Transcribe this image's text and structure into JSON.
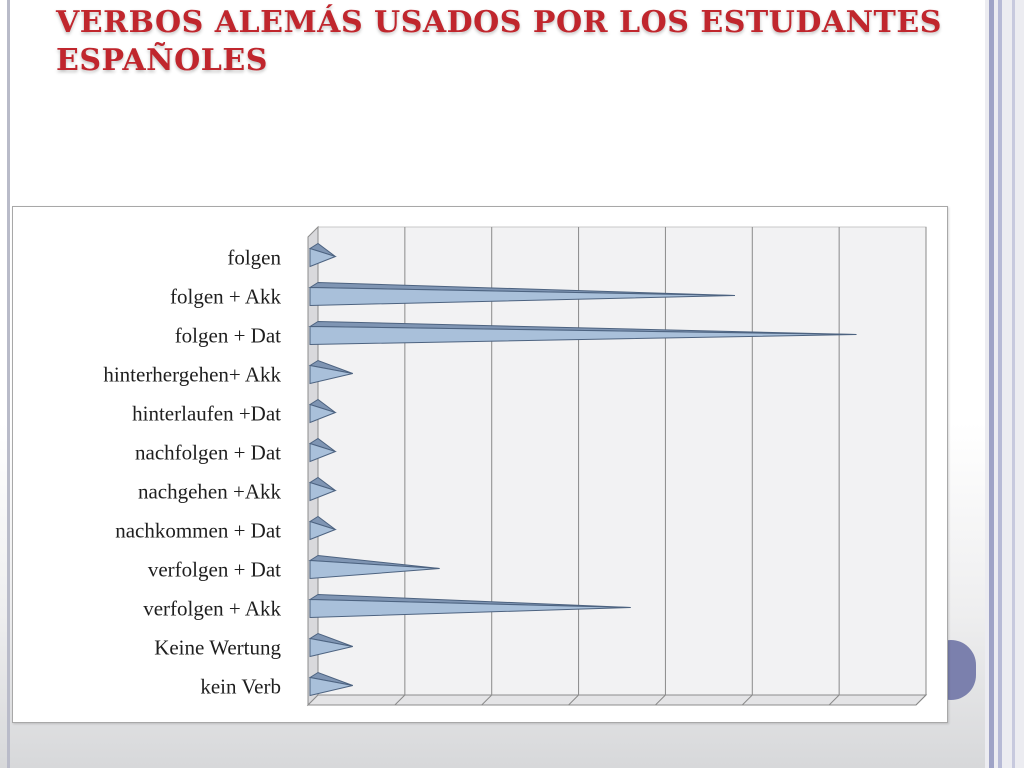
{
  "slide": {
    "title": "VERBOS ALEMÁS USADOS POR LOS ESTUDANTES ESPAÑOLES"
  },
  "colors": {
    "title": "#c0262d",
    "bar_fill": "#a9c0da",
    "bar_edge": "#4d6380",
    "grid": "#8a8a8a",
    "plot_back": "#f2f2f3"
  },
  "chart_data": {
    "type": "bar",
    "orientation": "horizontal",
    "bar_shape": "pyramid",
    "title": "",
    "xlabel": "",
    "ylabel": "",
    "categories": [
      "folgen",
      "folgen + Akk",
      "folgen + Dat",
      "hinterhergehen+ Akk",
      "hinterlaufen +Dat",
      "nachfolgen + Dat",
      "nachgehen +Akk",
      "nachkommen + Dat",
      "verfolgen + Dat",
      "verfolgen + Akk",
      "Keine Wertung",
      "kein Verb"
    ],
    "values": [
      1,
      24,
      31,
      2,
      1,
      1,
      1,
      1,
      7,
      18,
      2,
      2
    ],
    "xlim": [
      0,
      35
    ],
    "grid": true,
    "legend": "none",
    "tick_labels_visible": false
  }
}
